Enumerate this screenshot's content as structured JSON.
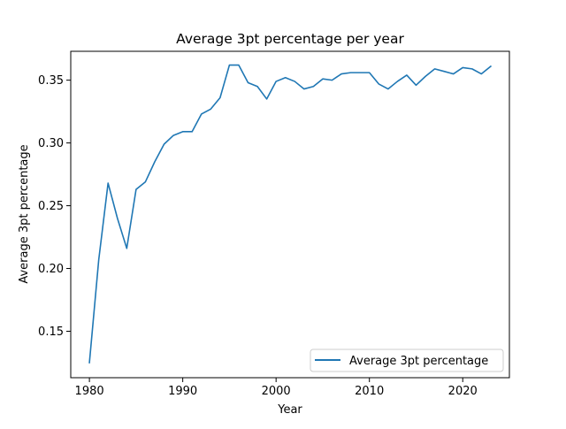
{
  "chart_data": {
    "type": "line",
    "title": "Average 3pt percentage per year",
    "xlabel": "Year",
    "ylabel": "Average 3pt percentage",
    "xlim": [
      1978,
      2025
    ],
    "ylim": [
      0.113,
      0.373
    ],
    "xticks": [
      1980,
      1990,
      2000,
      2010,
      2020
    ],
    "yticks": [
      0.15,
      0.2,
      0.25,
      0.3,
      0.35
    ],
    "ytick_labels": [
      "0.15",
      "0.20",
      "0.25",
      "0.30",
      "0.35"
    ],
    "grid": false,
    "legend_position": "lower-right",
    "series": [
      {
        "name": "Average 3pt percentage",
        "color": "#1f77b4",
        "x": [
          1980,
          1981,
          1982,
          1983,
          1984,
          1985,
          1986,
          1987,
          1988,
          1989,
          1990,
          1991,
          1992,
          1993,
          1994,
          1995,
          1996,
          1997,
          1998,
          1999,
          2000,
          2001,
          2002,
          2003,
          2004,
          2005,
          2006,
          2007,
          2008,
          2009,
          2010,
          2011,
          2012,
          2013,
          2014,
          2015,
          2016,
          2017,
          2018,
          2019,
          2020,
          2021,
          2022,
          2023
        ],
        "y": [
          0.125,
          0.207,
          0.268,
          0.24,
          0.216,
          0.263,
          0.269,
          0.285,
          0.299,
          0.306,
          0.309,
          0.309,
          0.323,
          0.327,
          0.336,
          0.362,
          0.362,
          0.348,
          0.345,
          0.335,
          0.349,
          0.352,
          0.349,
          0.343,
          0.345,
          0.351,
          0.35,
          0.355,
          0.356,
          0.356,
          0.356,
          0.347,
          0.343,
          0.349,
          0.354,
          0.346,
          0.353,
          0.359,
          0.357,
          0.355,
          0.36,
          0.359,
          0.355,
          0.361
        ]
      }
    ]
  }
}
